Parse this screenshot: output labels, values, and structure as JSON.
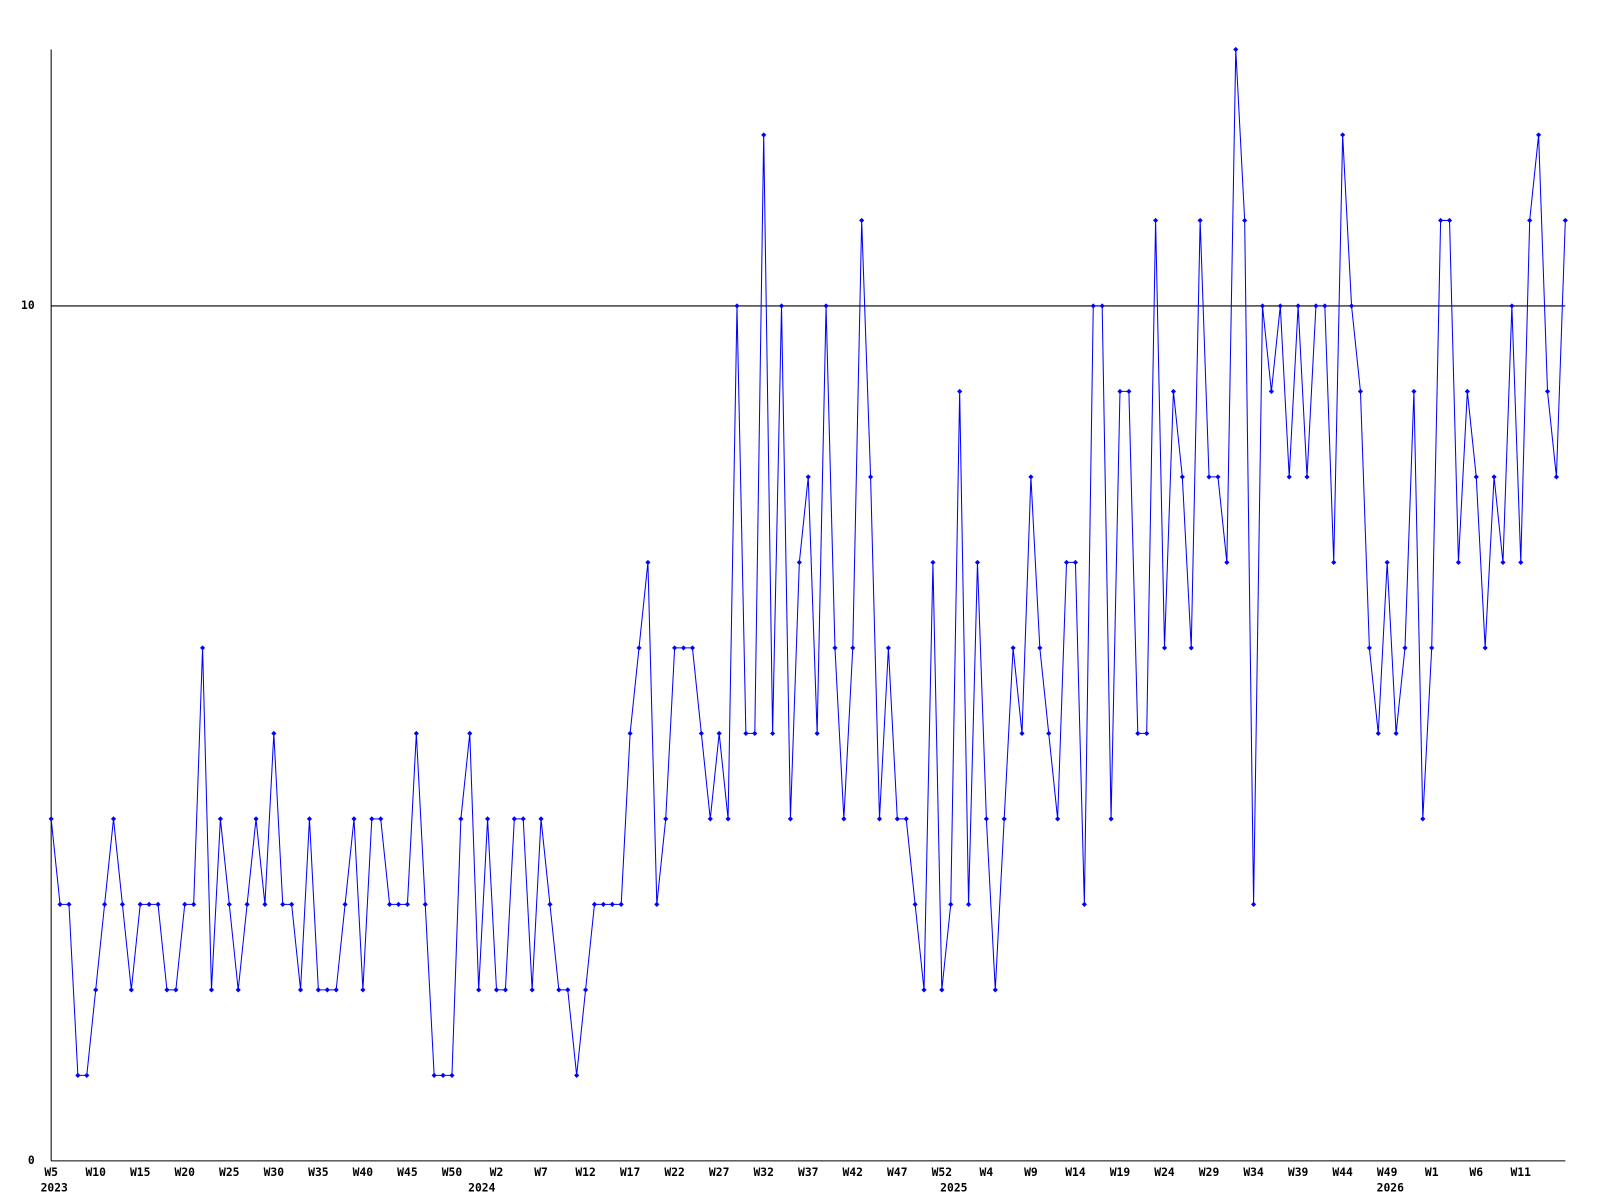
{
  "chart_data": {
    "type": "line",
    "categories": [
      "W5",
      null,
      null,
      null,
      null,
      "W10",
      null,
      null,
      null,
      null,
      "W15",
      null,
      null,
      null,
      null,
      "W20",
      null,
      null,
      null,
      null,
      "W25",
      null,
      null,
      null,
      null,
      "W30",
      null,
      null,
      null,
      null,
      "W35",
      null,
      null,
      null,
      null,
      "W40",
      null,
      null,
      null,
      null,
      "W45",
      null,
      null,
      null,
      null,
      "W50",
      null,
      null,
      null,
      null,
      "W2",
      null,
      null,
      null,
      null,
      "W7",
      null,
      null,
      null,
      null,
      "W12",
      null,
      null,
      null,
      null,
      "W17",
      null,
      null,
      null,
      null,
      "W22",
      null,
      null,
      null,
      null,
      "W27",
      null,
      null,
      null,
      null,
      "W32",
      null,
      null,
      null,
      null,
      "W37",
      null,
      null,
      null,
      null,
      "W42",
      null,
      null,
      null,
      null,
      "W47",
      null,
      null,
      null,
      null,
      "W52",
      null,
      null,
      null,
      null,
      "W4",
      null,
      null,
      null,
      null,
      "W9",
      null,
      null,
      null,
      null,
      "W14",
      null,
      null,
      null,
      null,
      "W19",
      null,
      null,
      null,
      null,
      "W24",
      null,
      null,
      null,
      null,
      "W29",
      null,
      null,
      null,
      null,
      "W34",
      null,
      null,
      null,
      null,
      "W39",
      null,
      null,
      null,
      null,
      "W44",
      null,
      null,
      null,
      null,
      "W49",
      null,
      null,
      null,
      null,
      "W1",
      null,
      null,
      null,
      null,
      "W6",
      null,
      null,
      null,
      null,
      "W11",
      null,
      null,
      null,
      null,
      null
    ],
    "category_years": [
      "2023",
      null,
      null,
      null,
      null,
      null,
      null,
      null,
      null,
      null,
      null,
      null,
      null,
      null,
      null,
      null,
      null,
      null,
      null,
      null,
      null,
      null,
      null,
      null,
      null,
      null,
      null,
      null,
      null,
      null,
      null,
      null,
      null,
      null,
      null,
      null,
      null,
      null,
      null,
      null,
      null,
      null,
      null,
      null,
      null,
      null,
      null,
      null,
      "2024",
      null,
      null,
      null,
      null,
      null,
      null,
      null,
      null,
      null,
      null,
      null,
      null,
      null,
      null,
      null,
      null,
      null,
      null,
      null,
      null,
      null,
      null,
      null,
      null,
      null,
      null,
      null,
      null,
      null,
      null,
      null,
      null,
      null,
      null,
      null,
      null,
      null,
      null,
      null,
      null,
      null,
      null,
      null,
      null,
      null,
      null,
      null,
      null,
      null,
      null,
      null,
      null,
      "2025",
      null,
      null,
      null,
      null,
      null,
      null,
      null,
      null,
      null,
      null,
      null,
      null,
      null,
      null,
      null,
      null,
      null,
      null,
      null,
      null,
      null,
      null,
      null,
      null,
      null,
      null,
      null,
      null,
      null,
      null,
      null,
      null,
      null,
      null,
      null,
      null,
      null,
      null,
      null,
      null,
      null,
      null,
      null,
      null,
      null,
      null,
      null,
      null,
      "2026",
      null,
      null,
      null,
      null,
      null,
      null,
      null,
      null,
      null,
      null,
      null,
      null,
      null,
      null,
      null,
      null
    ],
    "series": [
      {
        "color": "#0000ff",
        "values": [
          4,
          3,
          3,
          1,
          1,
          2,
          3,
          4,
          3,
          2,
          3,
          3,
          3,
          2,
          2,
          3,
          3,
          6,
          2,
          4,
          3,
          2,
          3,
          4,
          3,
          5,
          3,
          3,
          2,
          4,
          2,
          2,
          2,
          3,
          4,
          2,
          4,
          4,
          3,
          3,
          3,
          5,
          3,
          1,
          1,
          1,
          4,
          5,
          2,
          4,
          2,
          2,
          4,
          4,
          2,
          4,
          3,
          2,
          2,
          1,
          2,
          3,
          3,
          3,
          3,
          5,
          6,
          7,
          3,
          4,
          6,
          6,
          6,
          5,
          4,
          5,
          4,
          10,
          5,
          5,
          12,
          5,
          10,
          4,
          7,
          8,
          5,
          10,
          6,
          4,
          6,
          11,
          8,
          4,
          6,
          4,
          4,
          3,
          2,
          7,
          2,
          3,
          9,
          3,
          7,
          4,
          2,
          4,
          6,
          5,
          8,
          6,
          5,
          4,
          7,
          7,
          3,
          10,
          10,
          4,
          9,
          9,
          5,
          5,
          11,
          6,
          9,
          8,
          6,
          11,
          8,
          8,
          7,
          13,
          11,
          3,
          10,
          9,
          10,
          8,
          10,
          8,
          10,
          10,
          7,
          12,
          10,
          9,
          6,
          5,
          7,
          5,
          6,
          9,
          4,
          6,
          11,
          11,
          7,
          9,
          8,
          6,
          8,
          7,
          10,
          7,
          11,
          12,
          9,
          8,
          11
        ]
      }
    ],
    "ylim": [
      0,
      13
    ],
    "yticks": [
      0,
      10
    ],
    "grid": true
  }
}
